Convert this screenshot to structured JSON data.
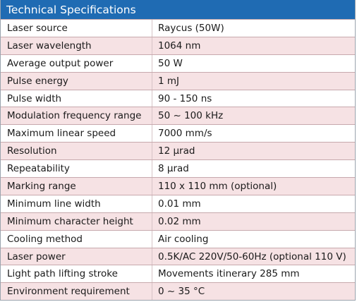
{
  "table": {
    "title": "Technical Specifications",
    "header_color": "#1f6bb3",
    "alt_row_color": "#f6e2e4",
    "rows": [
      {
        "label": "Laser source",
        "value": "Raycus (50W)"
      },
      {
        "label": "Laser wavelength",
        "value": "1064 nm"
      },
      {
        "label": "Average output power",
        "value": "50 W"
      },
      {
        "label": "Pulse energy",
        "value": "1 mJ"
      },
      {
        "label": "Pulse width",
        "value": "90 - 150 ns"
      },
      {
        "label": "Modulation frequency range",
        "value": "50 ~ 100 kHz"
      },
      {
        "label": "Maximum linear speed",
        "value": "7000 mm/s"
      },
      {
        "label": "Resolution",
        "value": "12 µrad"
      },
      {
        "label": "Repeatability",
        "value": "8 µrad"
      },
      {
        "label": "Marking range",
        "value": "110 x 110 mm (optional)"
      },
      {
        "label": "Minimum line width",
        "value": "0.01 mm"
      },
      {
        "label": "Minimum character height",
        "value": "0.02 mm"
      },
      {
        "label": "Cooling method",
        "value": "Air cooling"
      },
      {
        "label": "Laser power",
        "value": "0.5K/AC 220V/50-60Hz (optional 110 V)"
      },
      {
        "label": "Light path lifting stroke",
        "value": "Movements itinerary 285 mm"
      },
      {
        "label": "Environment requirement",
        "value": "0 ~ 35 °C"
      }
    ]
  }
}
